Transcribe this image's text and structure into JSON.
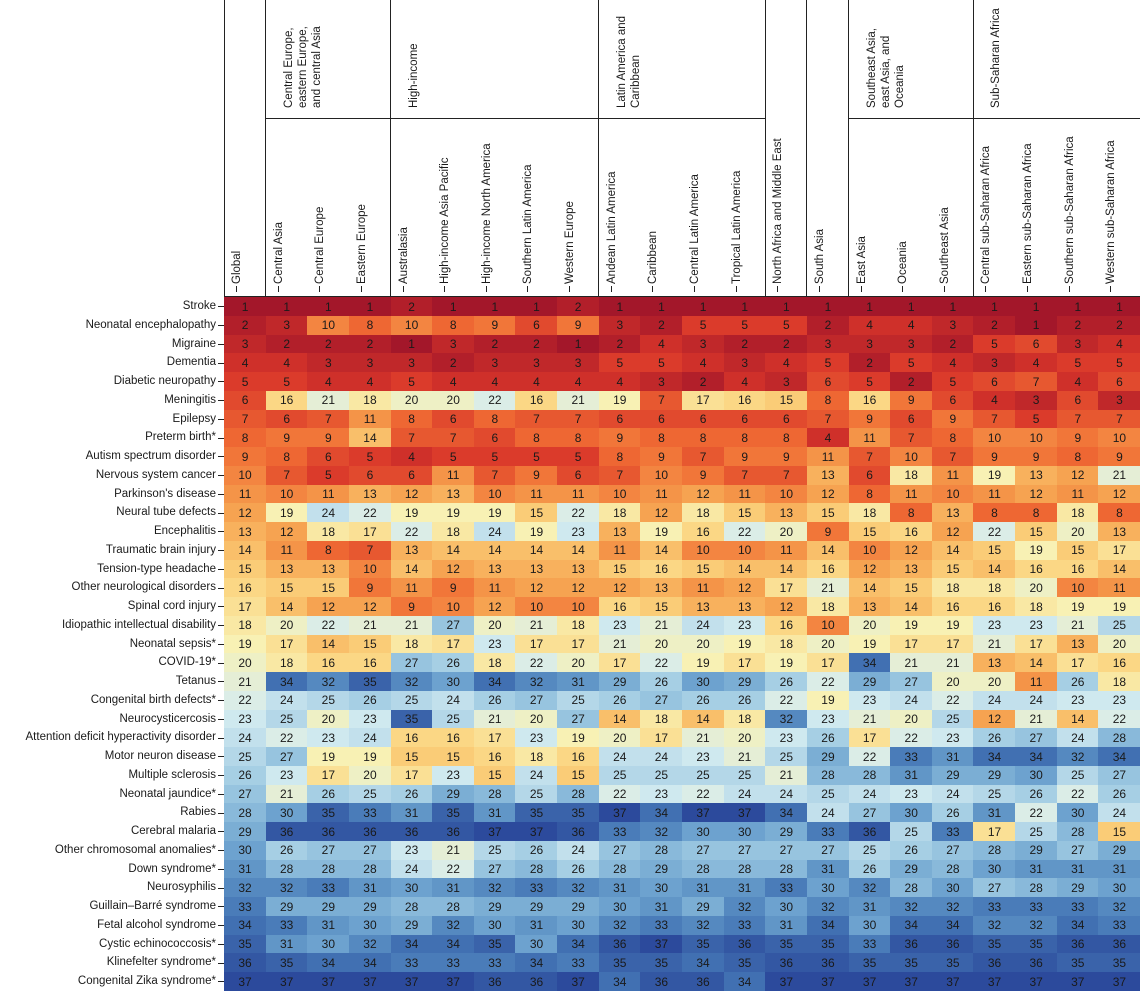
{
  "chart_data": {
    "type": "heatmap",
    "rows": [
      "Stroke",
      "Neonatal encephalopathy",
      "Migraine",
      "Dementia",
      "Diabetic neuropathy",
      "Meningitis",
      "Epilepsy",
      "Preterm birth*",
      "Autism spectrum disorder",
      "Nervous system cancer",
      "Parkinson's disease",
      "Neural tube defects",
      "Encephalitis",
      "Traumatic brain injury",
      "Tension-type headache",
      "Other neurological disorders",
      "Spinal cord injury",
      "Idiopathic intellectual disability",
      "Neonatal sepsis*",
      "COVID-19*",
      "Tetanus",
      "Congenital birth defects*",
      "Neurocysticercosis",
      "Attention deficit hyperactivity disorder",
      "Motor neuron disease",
      "Multiple sclerosis",
      "Neonatal jaundice*",
      "Rabies",
      "Cerebral malaria",
      "Other chromosomal anomalies*",
      "Down syndrome*",
      "Neurosyphilis",
      "Guillain–Barré syndrome",
      "Fetal alcohol syndrome",
      "Cystic echinococcosis*",
      "Klinefelter syndrome*",
      "Congenital Zika syndrome*"
    ],
    "column_groups": [
      {
        "name": null,
        "columns": [
          "Global"
        ]
      },
      {
        "name": "Central Europe, eastern Europe, and central Asia",
        "columns": [
          "Central Asia",
          "Central Europe",
          "Eastern Europe"
        ]
      },
      {
        "name": "High-income",
        "columns": [
          "Australasia",
          "High-income Asia Pacific",
          "High-income North America",
          "Southern Latin America",
          "Western Europe"
        ]
      },
      {
        "name": "Latin America and Caribbean",
        "columns": [
          "Andean Latin America",
          "Caribbean",
          "Central Latin America",
          "Tropical Latin America"
        ]
      },
      {
        "name": null,
        "columns": [
          "North Africa and Middle East"
        ]
      },
      {
        "name": null,
        "columns": [
          "South Asia"
        ]
      },
      {
        "name": "Southeast Asia, east Asia, and Oceania",
        "columns": [
          "East Asia",
          "Oceania",
          "Southeast Asia"
        ]
      },
      {
        "name": "Sub-Saharan Africa",
        "columns": [
          "Central sub-Saharan Africa",
          "Eastern sub-Saharan Africa",
          "Southern sub-Saharan Africa",
          "Western sub-Saharan Africa"
        ]
      }
    ],
    "values": [
      [
        1,
        1,
        1,
        1,
        2,
        1,
        1,
        1,
        2,
        1,
        1,
        1,
        1,
        1,
        1,
        1,
        1,
        1,
        1,
        1,
        1,
        1
      ],
      [
        2,
        3,
        10,
        8,
        10,
        8,
        9,
        6,
        9,
        3,
        2,
        5,
        5,
        5,
        2,
        4,
        4,
        3,
        2,
        1,
        2,
        2
      ],
      [
        3,
        2,
        2,
        2,
        1,
        3,
        2,
        2,
        1,
        2,
        4,
        3,
        2,
        2,
        3,
        3,
        3,
        2,
        5,
        6,
        3,
        4
      ],
      [
        4,
        4,
        3,
        3,
        3,
        2,
        3,
        3,
        3,
        5,
        5,
        4,
        3,
        4,
        5,
        2,
        5,
        4,
        3,
        4,
        5,
        5
      ],
      [
        5,
        5,
        4,
        4,
        5,
        4,
        4,
        4,
        4,
        4,
        3,
        2,
        4,
        3,
        6,
        5,
        2,
        5,
        6,
        7,
        4,
        6
      ],
      [
        6,
        16,
        21,
        18,
        20,
        20,
        22,
        16,
        21,
        19,
        7,
        17,
        16,
        15,
        8,
        16,
        9,
        6,
        4,
        3,
        6,
        3
      ],
      [
        7,
        6,
        7,
        11,
        8,
        6,
        8,
        7,
        7,
        6,
        6,
        6,
        6,
        6,
        7,
        9,
        6,
        9,
        7,
        5,
        7,
        7
      ],
      [
        8,
        9,
        9,
        14,
        7,
        7,
        6,
        8,
        8,
        9,
        8,
        8,
        8,
        8,
        4,
        11,
        7,
        8,
        10,
        10,
        9,
        10
      ],
      [
        9,
        8,
        6,
        5,
        4,
        5,
        5,
        5,
        5,
        8,
        9,
        7,
        9,
        9,
        11,
        7,
        10,
        7,
        9,
        9,
        8,
        9
      ],
      [
        10,
        7,
        5,
        6,
        6,
        11,
        7,
        9,
        6,
        7,
        10,
        9,
        7,
        7,
        13,
        6,
        18,
        11,
        19,
        13,
        12,
        21
      ],
      [
        11,
        10,
        11,
        13,
        12,
        13,
        10,
        11,
        11,
        10,
        11,
        12,
        11,
        10,
        12,
        8,
        11,
        10,
        11,
        12,
        11,
        12
      ],
      [
        12,
        19,
        24,
        22,
        19,
        19,
        19,
        15,
        22,
        18,
        12,
        18,
        15,
        13,
        15,
        18,
        8,
        13,
        8,
        8,
        18,
        8
      ],
      [
        13,
        12,
        18,
        17,
        22,
        18,
        24,
        19,
        23,
        13,
        19,
        16,
        22,
        20,
        9,
        15,
        16,
        12,
        22,
        15,
        20,
        13
      ],
      [
        14,
        11,
        8,
        7,
        13,
        14,
        14,
        14,
        14,
        11,
        14,
        10,
        10,
        11,
        14,
        10,
        12,
        14,
        15,
        19,
        15,
        17
      ],
      [
        15,
        13,
        13,
        10,
        14,
        12,
        13,
        13,
        13,
        15,
        16,
        15,
        14,
        14,
        16,
        12,
        13,
        15,
        14,
        16,
        16,
        14
      ],
      [
        16,
        15,
        15,
        9,
        11,
        9,
        11,
        12,
        12,
        12,
        13,
        11,
        12,
        17,
        21,
        14,
        15,
        18,
        18,
        20,
        10,
        11
      ],
      [
        17,
        14,
        12,
        12,
        9,
        10,
        12,
        10,
        10,
        16,
        15,
        13,
        13,
        12,
        18,
        13,
        14,
        16,
        16,
        18,
        19,
        19
      ],
      [
        18,
        20,
        22,
        21,
        21,
        27,
        20,
        21,
        18,
        23,
        21,
        24,
        23,
        16,
        10,
        20,
        19,
        19,
        23,
        23,
        21,
        25
      ],
      [
        19,
        17,
        14,
        15,
        18,
        17,
        23,
        17,
        17,
        21,
        20,
        20,
        19,
        18,
        20,
        19,
        17,
        17,
        21,
        17,
        13,
        20
      ],
      [
        20,
        18,
        16,
        16,
        27,
        26,
        18,
        22,
        20,
        17,
        22,
        19,
        17,
        19,
        17,
        34,
        21,
        21,
        13,
        14,
        17,
        16
      ],
      [
        21,
        34,
        32,
        35,
        32,
        30,
        34,
        32,
        31,
        29,
        26,
        30,
        29,
        26,
        22,
        29,
        27,
        20,
        20,
        11,
        26,
        18
      ],
      [
        22,
        24,
        25,
        26,
        25,
        24,
        26,
        27,
        25,
        26,
        27,
        26,
        26,
        22,
        19,
        23,
        24,
        22,
        24,
        24,
        23,
        23
      ],
      [
        23,
        25,
        20,
        23,
        35,
        25,
        21,
        20,
        27,
        14,
        18,
        14,
        18,
        32,
        23,
        21,
        20,
        25,
        12,
        21,
        14,
        22
      ],
      [
        24,
        22,
        23,
        24,
        16,
        16,
        17,
        23,
        19,
        20,
        17,
        21,
        20,
        23,
        26,
        17,
        22,
        23,
        26,
        27,
        24,
        28
      ],
      [
        25,
        27,
        19,
        19,
        15,
        15,
        16,
        18,
        16,
        24,
        24,
        23,
        21,
        25,
        29,
        22,
        33,
        31,
        34,
        34,
        32,
        34
      ],
      [
        26,
        23,
        17,
        20,
        17,
        23,
        15,
        24,
        15,
        25,
        25,
        25,
        25,
        21,
        28,
        28,
        31,
        29,
        29,
        30,
        25,
        27
      ],
      [
        27,
        21,
        26,
        25,
        26,
        29,
        28,
        25,
        28,
        22,
        23,
        22,
        24,
        24,
        25,
        24,
        23,
        24,
        25,
        26,
        22,
        26
      ],
      [
        28,
        30,
        35,
        33,
        31,
        35,
        31,
        35,
        35,
        37,
        34,
        37,
        37,
        34,
        24,
        27,
        30,
        26,
        31,
        22,
        30,
        24
      ],
      [
        29,
        36,
        36,
        36,
        36,
        36,
        37,
        37,
        36,
        33,
        32,
        30,
        30,
        29,
        33,
        36,
        25,
        33,
        17,
        25,
        28,
        15
      ],
      [
        30,
        26,
        27,
        27,
        23,
        21,
        25,
        26,
        24,
        27,
        28,
        27,
        27,
        27,
        27,
        25,
        26,
        27,
        28,
        29,
        27,
        29
      ],
      [
        31,
        28,
        28,
        28,
        24,
        22,
        27,
        28,
        26,
        28,
        29,
        28,
        28,
        28,
        31,
        26,
        29,
        28,
        30,
        31,
        31,
        31
      ],
      [
        32,
        32,
        33,
        31,
        30,
        31,
        32,
        33,
        32,
        31,
        30,
        31,
        31,
        33,
        30,
        32,
        28,
        30,
        27,
        28,
        29,
        30
      ],
      [
        33,
        29,
        29,
        29,
        28,
        28,
        29,
        29,
        29,
        30,
        31,
        29,
        32,
        30,
        32,
        31,
        32,
        32,
        33,
        33,
        33,
        32
      ],
      [
        34,
        33,
        31,
        30,
        29,
        32,
        30,
        31,
        30,
        32,
        33,
        32,
        33,
        31,
        34,
        30,
        34,
        34,
        32,
        32,
        34,
        33
      ],
      [
        35,
        31,
        30,
        32,
        34,
        34,
        35,
        30,
        34,
        36,
        37,
        35,
        36,
        35,
        35,
        33,
        36,
        36,
        35,
        35,
        36,
        36
      ],
      [
        36,
        35,
        34,
        34,
        33,
        33,
        33,
        34,
        33,
        35,
        35,
        34,
        35,
        36,
        36,
        35,
        35,
        35,
        36,
        36,
        35,
        35
      ],
      [
        37,
        37,
        37,
        37,
        37,
        37,
        36,
        36,
        37,
        34,
        36,
        36,
        34,
        37,
        37,
        37,
        37,
        37,
        37,
        37,
        37,
        37
      ]
    ],
    "clim": [
      1,
      37
    ],
    "colorscale": [
      "#a3172a",
      "#d8352a",
      "#ef6a33",
      "#f6a04e",
      "#fbd27c",
      "#f8f1b4",
      "#d5ecf1",
      "#a3cde3",
      "#6fa5d0",
      "#4577b6",
      "#2c4a9c"
    ]
  }
}
